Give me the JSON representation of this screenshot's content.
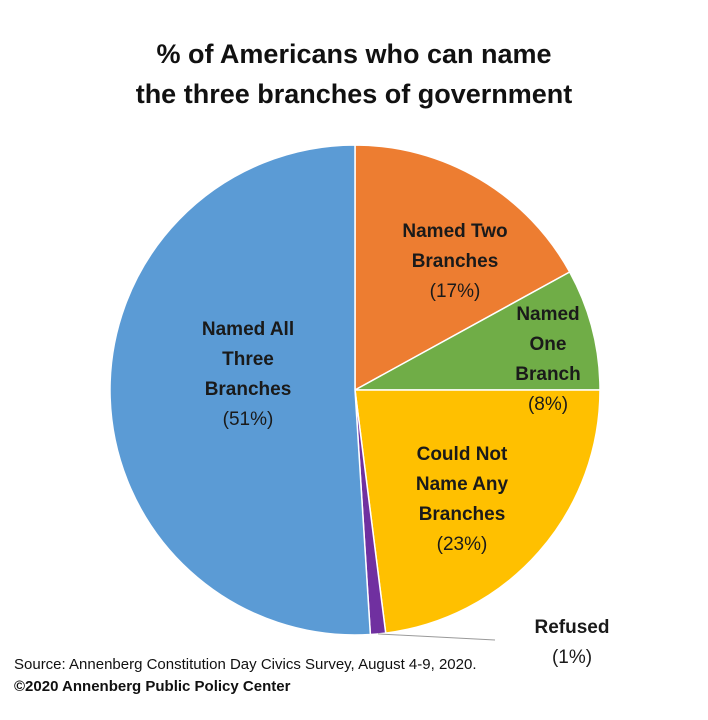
{
  "chart_data": {
    "type": "pie",
    "title": "% of Americans who can name\nthe three branches of government",
    "categories": [
      "Named Two Branches",
      "Named One Branch",
      "Could Not Name Any Branches",
      "Refused",
      "Named All Three Branches"
    ],
    "values": [
      17,
      8,
      23,
      1,
      51
    ],
    "value_labels": [
      "(17%)",
      "(8%)",
      "(23%)",
      "(1%)",
      "(51%)"
    ],
    "colors": [
      "#ed7d31",
      "#70ad47",
      "#ffc000",
      "#7030a0",
      "#5b9bd5"
    ],
    "source": "Source: Annenberg Constitution Day Civics Survey, August 4-9, 2020.",
    "copyright": "©2020 Annenberg Public Policy Center"
  }
}
